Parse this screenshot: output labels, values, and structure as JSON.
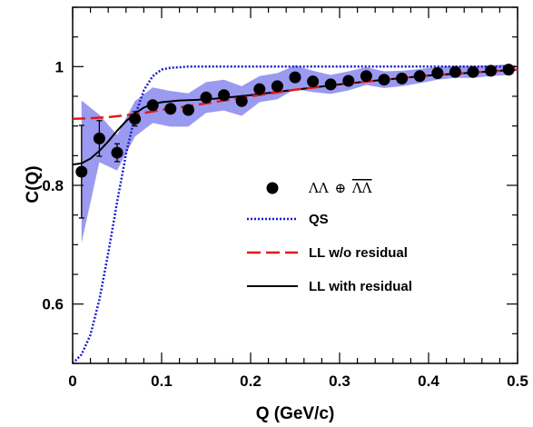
{
  "chart_data": {
    "type": "scatter",
    "xlabel": "Q (GeV/c)",
    "ylabel": "C(Q)",
    "xlim": [
      0,
      0.5
    ],
    "ylim": [
      0.5,
      1.1
    ],
    "x_ticks": [
      0,
      0.1,
      0.2,
      0.3,
      0.4,
      0.5
    ],
    "x_tick_labels": [
      "0",
      "0.1",
      "0.2",
      "0.3",
      "0.4",
      "0.5"
    ],
    "y_ticks": [
      0.6,
      0.8,
      1.0
    ],
    "y_tick_labels": [
      "0.6",
      "0.8",
      "1"
    ],
    "grid": false,
    "legend_position": "center-right",
    "colors": {
      "data": "#000000",
      "systematic_band": "#8888ee",
      "qs": "#1a1acc",
      "ll_wo_residual": "#e01b1b",
      "ll_with_residual": "#000000"
    },
    "legend": {
      "data_label_prefix": "ΛΛ",
      "data_label_op": "⊕",
      "data_label_bar": "ΛΛ",
      "qs": "QS",
      "ll_wo_residual": "LL w/o residual",
      "ll_with_residual": "LL with residual"
    },
    "data_points": {
      "name": "ΛΛ ⊕ ΛΛbar",
      "x": [
        0.01,
        0.03,
        0.05,
        0.07,
        0.09,
        0.11,
        0.13,
        0.15,
        0.17,
        0.19,
        0.21,
        0.23,
        0.25,
        0.27,
        0.29,
        0.31,
        0.33,
        0.35,
        0.37,
        0.39,
        0.41,
        0.43,
        0.45,
        0.47,
        0.49
      ],
      "y": [
        0.823,
        0.879,
        0.855,
        0.912,
        0.935,
        0.929,
        0.927,
        0.948,
        0.952,
        0.942,
        0.962,
        0.967,
        0.982,
        0.975,
        0.97,
        0.976,
        0.984,
        0.978,
        0.98,
        0.984,
        0.989,
        0.991,
        0.991,
        0.993,
        0.995
      ],
      "stat_err": [
        0.078,
        0.03,
        0.015,
        0.012,
        0.008,
        0.007,
        0.006,
        0.006,
        0.005,
        0.005,
        0.005,
        0.005,
        0.005,
        0.004,
        0.004,
        0.004,
        0.004,
        0.004,
        0.004,
        0.004,
        0.004,
        0.004,
        0.004,
        0.004,
        0.004
      ],
      "sys_err": [
        0.12,
        0.04,
        0.03,
        0.03,
        0.03,
        0.03,
        0.028,
        0.026,
        0.026,
        0.025,
        0.022,
        0.022,
        0.02,
        0.018,
        0.016,
        0.016,
        0.015,
        0.014,
        0.013,
        0.012,
        0.011,
        0.01,
        0.01,
        0.009,
        0.009
      ]
    },
    "curves": {
      "qs": {
        "x": [
          0,
          0.01,
          0.02,
          0.03,
          0.04,
          0.05,
          0.06,
          0.07,
          0.08,
          0.09,
          0.1,
          0.11,
          0.12,
          0.13,
          0.15,
          0.2,
          0.3,
          0.4,
          0.5
        ],
        "y": [
          0.5,
          0.515,
          0.548,
          0.607,
          0.686,
          0.772,
          0.853,
          0.917,
          0.96,
          0.984,
          0.995,
          0.998,
          0.999,
          1.0,
          1.0,
          1.0,
          1.0,
          1.0,
          1.0
        ]
      },
      "ll_wo_residual": {
        "x": [
          0,
          0.02,
          0.04,
          0.06,
          0.08,
          0.1,
          0.15,
          0.2,
          0.25,
          0.3,
          0.35,
          0.4,
          0.45,
          0.5
        ],
        "y": [
          0.912,
          0.913,
          0.915,
          0.918,
          0.922,
          0.927,
          0.938,
          0.95,
          0.961,
          0.97,
          0.978,
          0.985,
          0.99,
          0.995
        ]
      },
      "ll_with_residual": {
        "x": [
          0,
          0.01,
          0.02,
          0.03,
          0.04,
          0.05,
          0.06,
          0.07,
          0.08,
          0.09,
          0.1,
          0.12,
          0.14,
          0.16,
          0.18,
          0.2,
          0.25,
          0.3,
          0.35,
          0.4,
          0.45,
          0.5
        ],
        "y": [
          0.835,
          0.837,
          0.845,
          0.858,
          0.874,
          0.892,
          0.908,
          0.921,
          0.931,
          0.937,
          0.94,
          0.943,
          0.944,
          0.946,
          0.949,
          0.952,
          0.961,
          0.97,
          0.978,
          0.985,
          0.99,
          0.995
        ]
      }
    }
  }
}
